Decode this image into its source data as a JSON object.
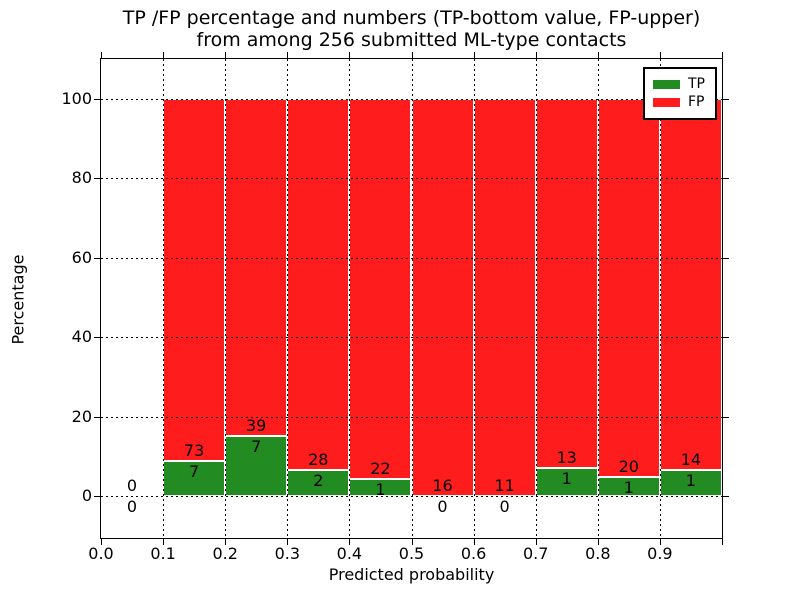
{
  "chart_data": {
    "type": "bar",
    "stacked": true,
    "title": "TP /FP percentage and numbers (TP-bottom value, FP-upper) from among 256 submitted ML-type contacts",
    "title_lines": [
      "TP /FP percentage and numbers (TP-bottom value, FP-upper)",
      "from among 256 submitted ML-type contacts"
    ],
    "xlabel": "Predicted probability",
    "ylabel": "Percentage",
    "xlim": [
      0.0,
      1.0
    ],
    "ylim": [
      -10.5,
      110
    ],
    "grid": true,
    "grid_style": "dotted",
    "yticks": [
      "0",
      "20",
      "40",
      "60",
      "80",
      "100"
    ],
    "ytick_values": [
      0,
      20,
      40,
      60,
      80,
      100
    ],
    "xtick_labels": [
      "0.0",
      "0.1",
      "0.2",
      "0.3",
      "0.4",
      "0.5",
      "0.6",
      "0.7",
      "0.8",
      "0.9"
    ],
    "xtick_values": [
      0.0,
      0.1,
      0.2,
      0.3,
      0.4,
      0.5,
      0.6,
      0.7,
      0.8,
      0.9
    ],
    "total_contacts": 256,
    "colors": {
      "tp": "#228b22",
      "fp": "#ff1c1c",
      "bar_edge": "#ffffff",
      "grid": "#000000"
    },
    "legend": {
      "position": "upper right",
      "entries": [
        {
          "label": "TP",
          "color": "#228b22"
        },
        {
          "label": "FP",
          "color": "#ff1c1c"
        }
      ]
    },
    "bins": [
      {
        "range": [
          0.0,
          0.1
        ],
        "tp": 0,
        "fp": 0,
        "tp_pct": 0,
        "fp_pct": 0,
        "has_bar": false
      },
      {
        "range": [
          0.1,
          0.2
        ],
        "tp": 7,
        "fp": 73,
        "tp_pct": 8.75,
        "fp_pct": 91.25,
        "has_bar": true
      },
      {
        "range": [
          0.2,
          0.3
        ],
        "tp": 7,
        "fp": 39,
        "tp_pct": 15.22,
        "fp_pct": 84.78,
        "has_bar": true
      },
      {
        "range": [
          0.3,
          0.4
        ],
        "tp": 2,
        "fp": 28,
        "tp_pct": 6.67,
        "fp_pct": 93.33,
        "has_bar": true
      },
      {
        "range": [
          0.4,
          0.5
        ],
        "tp": 1,
        "fp": 22,
        "tp_pct": 4.35,
        "fp_pct": 95.65,
        "has_bar": true
      },
      {
        "range": [
          0.5,
          0.6
        ],
        "tp": 0,
        "fp": 16,
        "tp_pct": 0,
        "fp_pct": 100,
        "has_bar": true
      },
      {
        "range": [
          0.6,
          0.7
        ],
        "tp": 0,
        "fp": 11,
        "tp_pct": 0,
        "fp_pct": 100,
        "has_bar": true
      },
      {
        "range": [
          0.7,
          0.8
        ],
        "tp": 1,
        "fp": 13,
        "tp_pct": 7.14,
        "fp_pct": 92.86,
        "has_bar": true
      },
      {
        "range": [
          0.8,
          0.9
        ],
        "tp": 1,
        "fp": 20,
        "tp_pct": 4.76,
        "fp_pct": 95.24,
        "has_bar": true
      },
      {
        "range": [
          0.9,
          1.0
        ],
        "tp": 1,
        "fp": 14,
        "tp_pct": 6.67,
        "fp_pct": 93.33,
        "has_bar": true
      }
    ]
  }
}
